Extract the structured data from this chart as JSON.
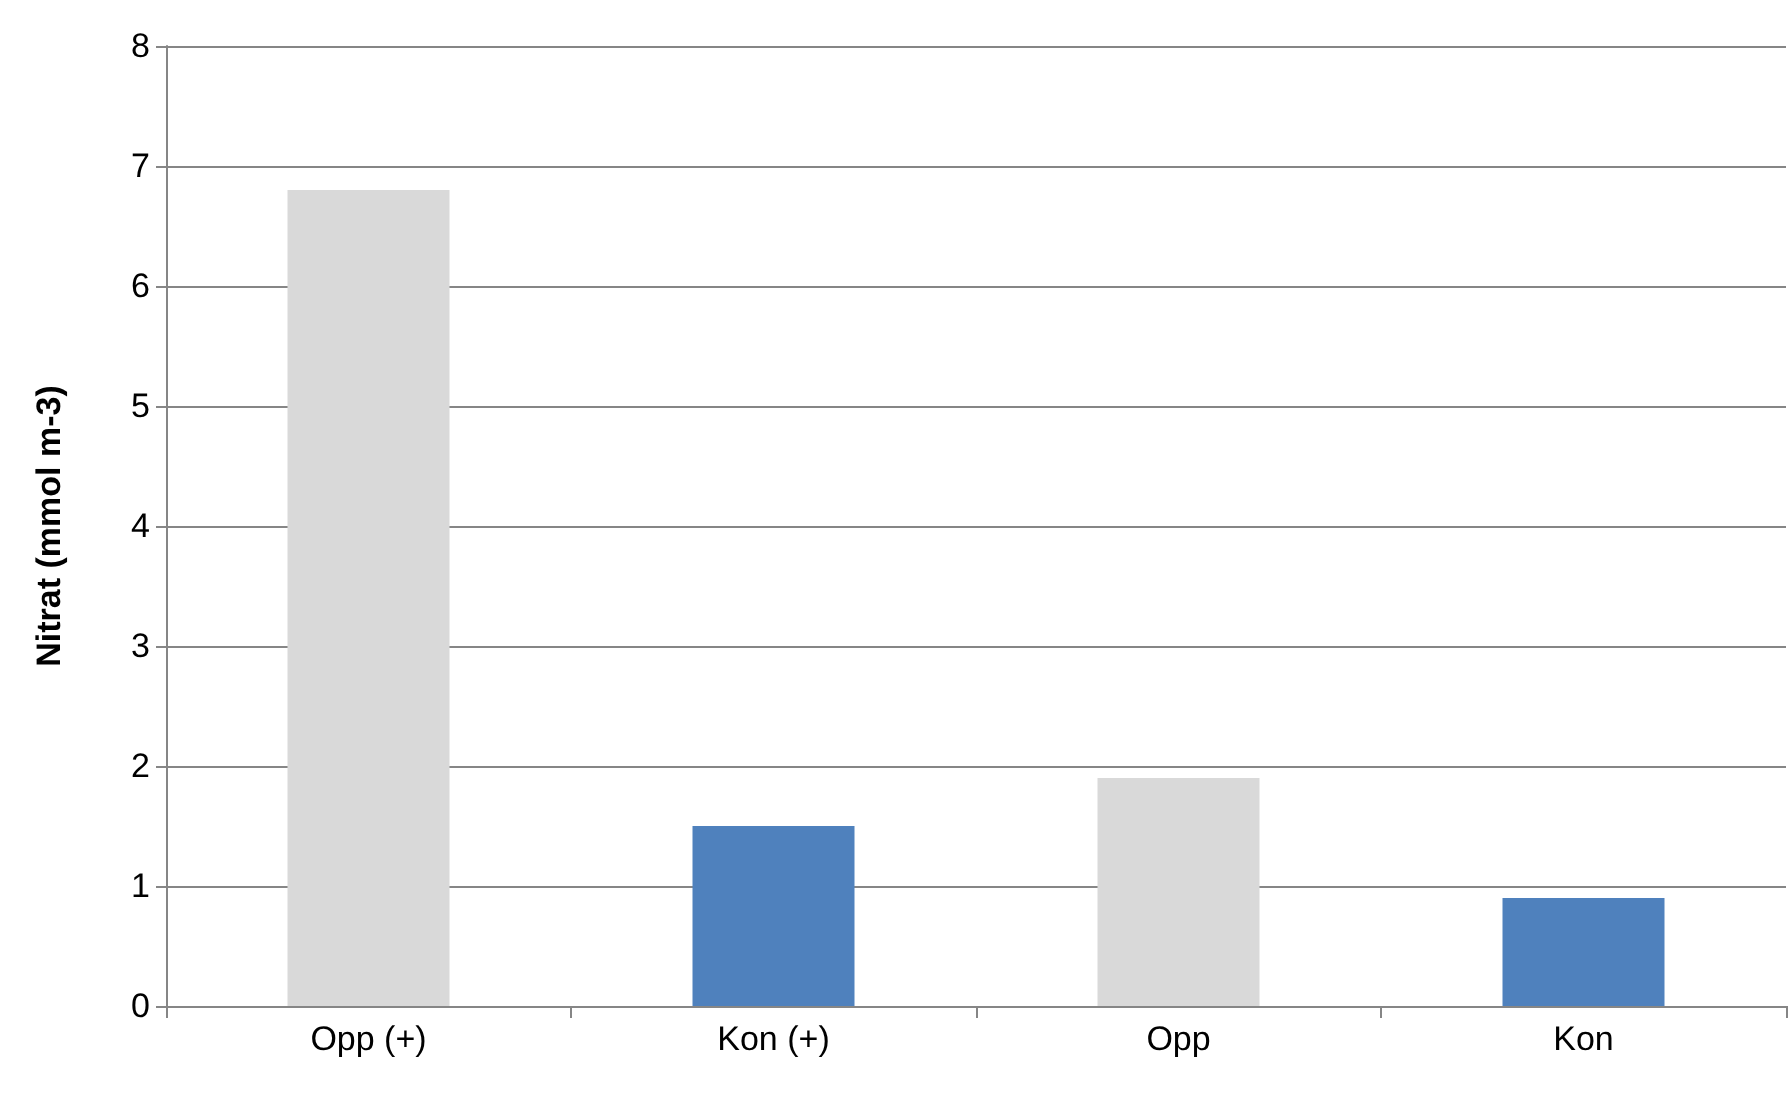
{
  "chart_data": {
    "type": "bar",
    "ylabel": "Nitrat (mmol m-3)",
    "categories": [
      "Opp (+)",
      "Kon (+)",
      "Opp",
      "Kon"
    ],
    "values": [
      6.8,
      1.5,
      1.9,
      0.9
    ],
    "colors": [
      "#d9d9d9",
      "#4f81bd",
      "#d9d9d9",
      "#4f81bd"
    ],
    "ylim": [
      0,
      8
    ],
    "yticks": [
      0,
      1,
      2,
      3,
      4,
      5,
      6,
      7,
      8
    ],
    "grid": "y"
  }
}
